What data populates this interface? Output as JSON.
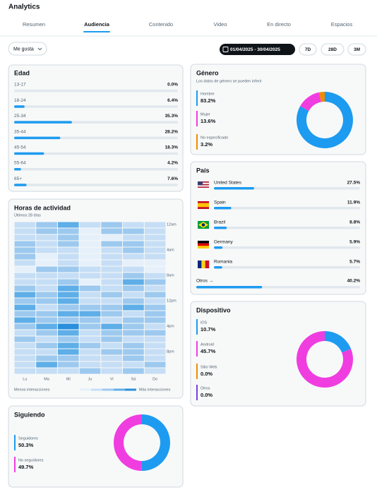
{
  "header": {
    "title": "Analytics"
  },
  "tabs": {
    "items": [
      "Resumen",
      "Audiencia",
      "Contenido",
      "Video",
      "En directo",
      "Espacios"
    ],
    "active": 1
  },
  "filters": {
    "metric": "Me gusta",
    "date_range": "01/04/2025 - 30/04/2025",
    "ranges": [
      "7D",
      "28D",
      "3M"
    ]
  },
  "edad": {
    "title": "Edad",
    "xlim": [
      0,
      100
    ],
    "color": "#1d9bf0",
    "items": [
      {
        "label": "13-17",
        "value": 0.0,
        "value_label": "0.0%"
      },
      {
        "label": "18-24",
        "value": 6.4,
        "value_label": "6.4%"
      },
      {
        "label": "25-34",
        "value": 35.3,
        "value_label": "35.3%"
      },
      {
        "label": "35-44",
        "value": 28.2,
        "value_label": "28.2%"
      },
      {
        "label": "45-54",
        "value": 18.3,
        "value_label": "18.3%"
      },
      {
        "label": "55-64",
        "value": 4.2,
        "value_label": "4.2%"
      },
      {
        "label": "65+",
        "value": 7.6,
        "value_label": "7.6%"
      }
    ]
  },
  "genero": {
    "title": "Género",
    "subtitle": "Los datos de género se pueden inferir",
    "items": [
      {
        "label": "Hombre",
        "value": 83.2,
        "value_label": "83.2%",
        "color": "#1d9bf0"
      },
      {
        "label": "Mujer",
        "value": 13.6,
        "value_label": "13.6%",
        "color": "#f03de0"
      },
      {
        "label": "No especificado",
        "value": 3.2,
        "value_label": "3.2%",
        "color": "#f08c00"
      }
    ]
  },
  "pais": {
    "title": "País",
    "xlim": [
      0,
      100
    ],
    "color": "#1d9bf0",
    "items": [
      {
        "label": "United States",
        "value": 27.5,
        "value_label": "27.5%"
      },
      {
        "label": "Spain",
        "value": 11.9,
        "value_label": "11.9%"
      },
      {
        "label": "Brazil",
        "value": 8.8,
        "value_label": "8.8%"
      },
      {
        "label": "Germany",
        "value": 5.9,
        "value_label": "5.9%"
      },
      {
        "label": "Romania",
        "value": 5.7,
        "value_label": "5.7%"
      }
    ],
    "other": {
      "label": "Otros →",
      "value": 40.2,
      "value_label": "40.2%"
    }
  },
  "dispositivo": {
    "title": "Dispositivo",
    "items": [
      {
        "label": "iOS",
        "value": 10.7,
        "value_label": "10.7%",
        "color": "#1d9bf0"
      },
      {
        "label": "Android",
        "value": 45.7,
        "value_label": "45.7%",
        "color": "#f03de0"
      },
      {
        "label": "Sitio Web",
        "value": 0.0,
        "value_label": "0.0%",
        "color": "#f08c00"
      },
      {
        "label": "Otros",
        "value": 0.0,
        "value_label": "0.0%",
        "color": "#7b3fe4"
      }
    ]
  },
  "siguiendo": {
    "title": "Siguiendo",
    "items": [
      {
        "label": "Seguidores",
        "value": 50.3,
        "value_label": "50.3%",
        "color": "#1d9bf0"
      },
      {
        "label": "No seguidores",
        "value": 49.7,
        "value_label": "49.7%",
        "color": "#f03de0"
      }
    ]
  },
  "actividad": {
    "title": "Horas de actividad",
    "subtitle": "Últimos 28 días",
    "days": [
      "Lu",
      "Ma",
      "Mi",
      "Ju",
      "Vi",
      "Sá",
      "Do"
    ],
    "hours": [
      "12am",
      null,
      null,
      null,
      "4am",
      null,
      null,
      null,
      "8am",
      null,
      null,
      null,
      "12pm",
      null,
      null,
      null,
      "4pm",
      null,
      null,
      null,
      "8pm",
      null,
      null,
      null
    ],
    "level_colors": [
      "#e6f0fa",
      "#c6def5",
      "#9dc9ef",
      "#5eaee8",
      "#2a8fdc"
    ],
    "levels": [
      [
        1,
        2,
        3,
        1,
        2,
        1,
        1
      ],
      [
        1,
        2,
        2,
        0,
        2,
        2,
        1
      ],
      [
        1,
        1,
        2,
        0,
        0,
        1,
        1
      ],
      [
        2,
        1,
        2,
        0,
        2,
        2,
        1
      ],
      [
        2,
        1,
        1,
        0,
        1,
        2,
        1
      ],
      [
        2,
        0,
        1,
        0,
        1,
        1,
        1
      ],
      [
        1,
        0,
        1,
        0,
        1,
        0,
        0
      ],
      [
        0,
        2,
        2,
        1,
        1,
        1,
        0
      ],
      [
        1,
        1,
        1,
        1,
        1,
        2,
        1
      ],
      [
        1,
        1,
        2,
        0,
        1,
        3,
        2
      ],
      [
        2,
        1,
        3,
        2,
        1,
        2,
        1
      ],
      [
        3,
        2,
        3,
        1,
        2,
        1,
        2
      ],
      [
        2,
        2,
        3,
        1,
        1,
        2,
        1
      ],
      [
        3,
        1,
        2,
        2,
        2,
        3,
        2
      ],
      [
        2,
        2,
        3,
        3,
        2,
        1,
        2
      ],
      [
        3,
        2,
        2,
        2,
        1,
        2,
        2
      ],
      [
        2,
        3,
        4,
        2,
        3,
        2,
        1
      ],
      [
        1,
        2,
        3,
        1,
        2,
        2,
        2
      ],
      [
        2,
        1,
        2,
        1,
        2,
        1,
        1
      ],
      [
        1,
        2,
        3,
        2,
        1,
        2,
        1
      ],
      [
        1,
        1,
        3,
        1,
        2,
        2,
        1
      ],
      [
        1,
        2,
        2,
        1,
        1,
        2,
        1
      ],
      [
        1,
        3,
        2,
        1,
        1,
        1,
        2
      ],
      [
        1,
        1,
        1,
        2,
        1,
        2,
        1
      ]
    ],
    "legend": {
      "low": "Menos interacciones",
      "high": "Más interacciones"
    }
  }
}
